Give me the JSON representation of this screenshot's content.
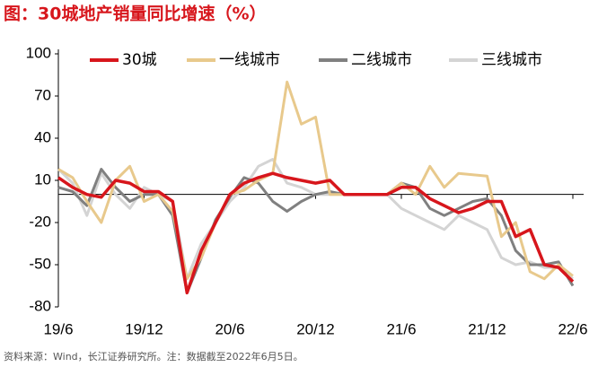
{
  "chart_data": {
    "type": "line",
    "title": "图：30城地产销量同比增速（%）",
    "source": "资料来源：Wind，长江证券研究所。注：数据截至2022年6月5日。",
    "categories": [
      "19/6",
      null,
      null,
      null,
      null,
      null,
      "19/12",
      null,
      null,
      null,
      null,
      null,
      "20/6",
      null,
      null,
      null,
      null,
      null,
      "20/12",
      null,
      null,
      null,
      null,
      null,
      "21/6",
      null,
      null,
      null,
      null,
      null,
      "21/12",
      null,
      null,
      null,
      null,
      null,
      "22/6"
    ],
    "ylim": [
      -80,
      100
    ],
    "yticks": [
      100,
      70,
      40,
      10,
      -20,
      -50,
      -80
    ],
    "series": [
      {
        "name": "30城",
        "color": "#d7161c",
        "values": [
          12,
          5,
          0,
          -2,
          10,
          8,
          2,
          2,
          -5,
          -70,
          -40,
          -20,
          0,
          8,
          12,
          15,
          12,
          10,
          8,
          10,
          0,
          0,
          0,
          0,
          5,
          5,
          -3,
          -8,
          -13,
          -10,
          -5,
          -5,
          -30,
          -25,
          -50,
          -52,
          -62
        ]
      },
      {
        "name": "一线城市",
        "color": "#e8c98c",
        "values": [
          18,
          12,
          -5,
          -20,
          10,
          20,
          -5,
          0,
          -12,
          -60,
          -45,
          -20,
          0,
          3,
          10,
          15,
          80,
          50,
          55,
          0,
          0,
          0,
          0,
          0,
          8,
          0,
          20,
          5,
          15,
          14,
          13,
          -30,
          -20,
          -55,
          -60,
          -50,
          -58
        ]
      },
      {
        "name": "二线城市",
        "color": "#808080",
        "values": [
          5,
          2,
          -8,
          18,
          5,
          -5,
          0,
          0,
          -15,
          -70,
          -45,
          -18,
          -2,
          12,
          8,
          -5,
          -12,
          -5,
          0,
          2,
          0,
          0,
          0,
          0,
          8,
          5,
          -10,
          -15,
          -10,
          -5,
          -3,
          -15,
          -40,
          -50,
          -50,
          -48,
          -65
        ]
      },
      {
        "name": "三线城市",
        "color": "#d4d4d4",
        "values": [
          18,
          8,
          -15,
          15,
          0,
          -10,
          5,
          0,
          -5,
          -60,
          -35,
          -20,
          -5,
          5,
          20,
          25,
          8,
          5,
          0,
          0,
          0,
          0,
          0,
          0,
          -10,
          -15,
          -20,
          -25,
          -15,
          -20,
          -25,
          -45,
          -50,
          -48,
          -52,
          -52,
          -60
        ]
      }
    ]
  }
}
